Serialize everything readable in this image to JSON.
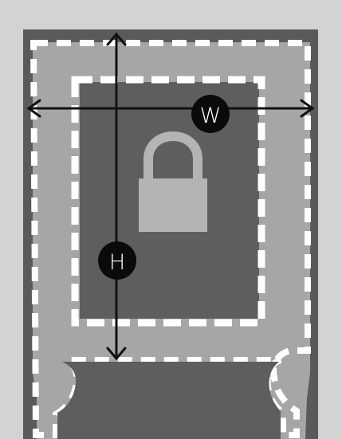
{
  "diagram": {
    "labels": {
      "width": "W",
      "height": "H"
    },
    "colors": {
      "background": "#d3d3d3",
      "outer_frame": "#5a5a5a",
      "mid_panel": "#a6a6a6",
      "inner_panel": "#5e5e5e",
      "dashes": "#ffffff",
      "arrows": "#111111",
      "badge_fill": "#0a0a0a",
      "badge_text": "#ffffff",
      "lock": "#b4b4b4"
    },
    "icons": [
      "lock-icon",
      "width-arrow-icon",
      "height-arrow-icon"
    ]
  }
}
